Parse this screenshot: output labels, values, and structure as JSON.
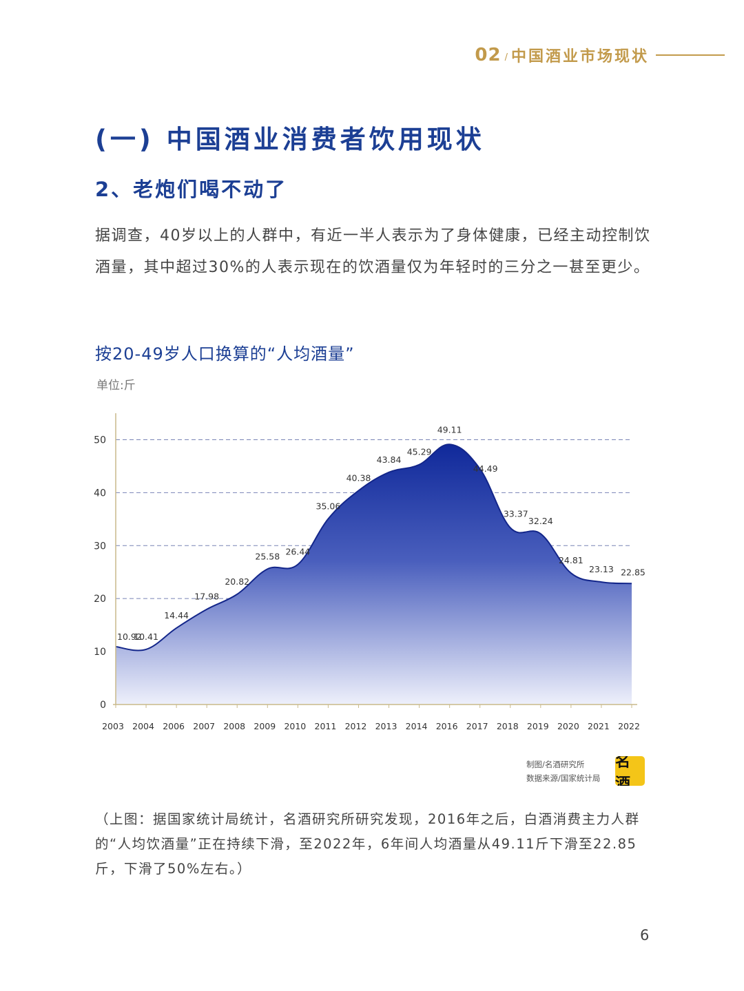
{
  "header": {
    "section_number": "02",
    "section_title": "中国酒业市场现状"
  },
  "title": "(一) 中国酒业消费者饮用现状",
  "subtitle": "2、老炮们喝不动了",
  "paragraph": "据调查，40岁以上的人群中，有近一半人表示为了身体健康，已经主动控制饮酒量，其中超过30%的人表示现在的饮酒量仅为年轻时的三分之一甚至更少。",
  "chart_title": "按20-49岁人口换算的“人均酒量”",
  "unit_label": "单位:斤",
  "chart_data": {
    "type": "area",
    "title": "按20-49岁人口换算的“人均酒量”",
    "ylabel": "单位:斤",
    "categories": [
      "2003",
      "2004",
      "2006",
      "2007",
      "2008",
      "2009",
      "2010",
      "2011",
      "2012",
      "2013",
      "2014",
      "2016",
      "2017",
      "2018",
      "2019",
      "2020",
      "2021",
      "2022"
    ],
    "values": [
      10.92,
      10.41,
      14.44,
      17.98,
      20.82,
      25.58,
      26.44,
      35.06,
      40.38,
      43.84,
      45.29,
      49.11,
      44.49,
      33.37,
      32.24,
      24.81,
      23.13,
      22.85
    ],
    "value_labels": [
      "10.92",
      "10.41",
      "14.44",
      "17.98",
      "20.82",
      "25.58",
      "26.44",
      "35.06",
      "40.38",
      "43.84",
      "45.29",
      "49.11",
      "44.49",
      "33.37",
      "32.24",
      "24.81",
      "23.13",
      "22.85"
    ],
    "yticks": [
      "0",
      "10",
      "20",
      "30",
      "40",
      "50"
    ],
    "ylim": [
      0,
      55
    ],
    "grid": true,
    "colors": {
      "fill_top": "#10299a",
      "fill_bottom": "#eef0fb",
      "line": "#13268a",
      "grid": "#4a5a9c",
      "axis": "#c9b98a"
    }
  },
  "credit": {
    "line1": "制图/名酒研究所",
    "line2": "数据来源/国家统计局",
    "logo_text": "名酒"
  },
  "caption": "（上图：据国家统计局统计，名酒研究所研究发现，2016年之后，白酒消费主力人群的“人均饮酒量”正在持续下滑，至2022年，6年间人均酒量从49.11斤下滑至22.85斤，下滑了50%左右。）",
  "page_number": "6"
}
